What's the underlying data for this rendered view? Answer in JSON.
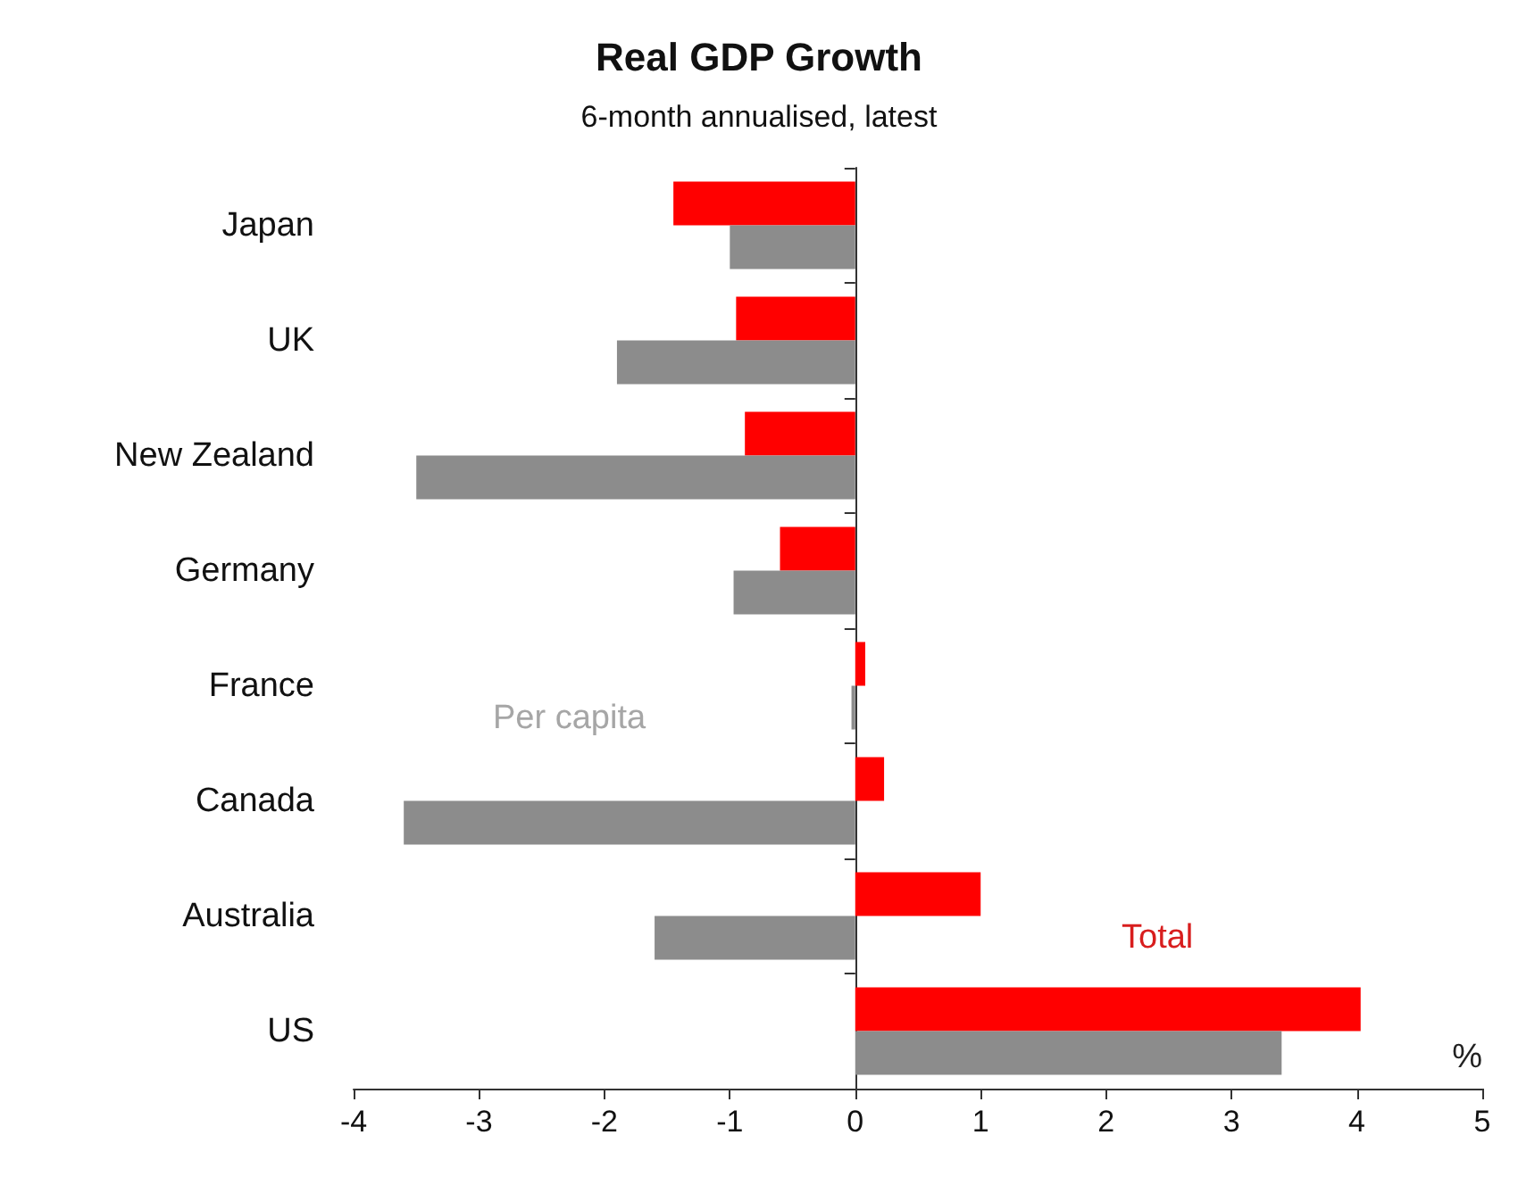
{
  "chart_data": {
    "type": "bar",
    "orientation": "horizontal",
    "title": "Real GDP Growth",
    "subtitle": "6-month annualised, latest",
    "categories": [
      "Japan",
      "UK",
      "New Zealand",
      "Germany",
      "France",
      "Canada",
      "Australia",
      "US"
    ],
    "series": [
      {
        "name": "Total",
        "color": "#ff0000",
        "values": [
          -1.45,
          -0.95,
          -0.88,
          -0.6,
          0.08,
          0.23,
          1.0,
          4.03
        ]
      },
      {
        "name": "Per capita",
        "color": "#8c8c8c",
        "values": [
          -1.0,
          -1.9,
          -3.5,
          -0.97,
          -0.03,
          -3.6,
          -1.6,
          3.4
        ]
      }
    ],
    "xlim": [
      -4,
      5
    ],
    "xticks": [
      -4,
      -3,
      -2,
      -1,
      0,
      1,
      2,
      3,
      4,
      5
    ],
    "annotations": [
      "%"
    ],
    "legend": false
  }
}
